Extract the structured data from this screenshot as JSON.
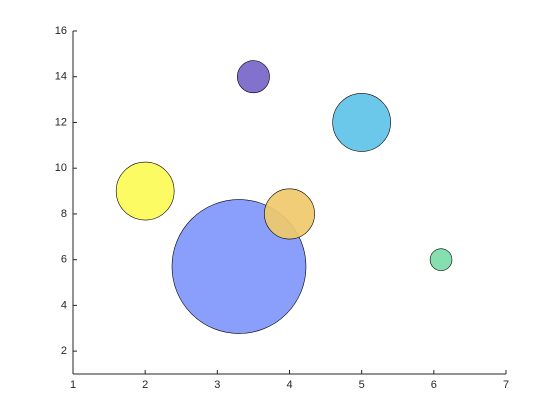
{
  "chart_data": {
    "type": "bubble",
    "x": [
      2,
      3.3,
      3.5,
      4,
      5,
      6.1
    ],
    "values": [
      9,
      5.7,
      14,
      8,
      12,
      6
    ],
    "sizes": [
      84,
      449,
      26,
      63,
      84,
      12
    ],
    "colors": [
      "#fdfb57",
      "#7f97fb",
      "#7866c9",
      "#f0c96b",
      "#5fc3e8",
      "#7bdca7"
    ],
    "xlim": [
      1,
      7
    ],
    "ylim": [
      1,
      16
    ],
    "xticks": [
      1,
      2,
      3,
      4,
      5,
      6,
      7
    ],
    "yticks": [
      2,
      4,
      6,
      8,
      10,
      12,
      14,
      16
    ]
  }
}
